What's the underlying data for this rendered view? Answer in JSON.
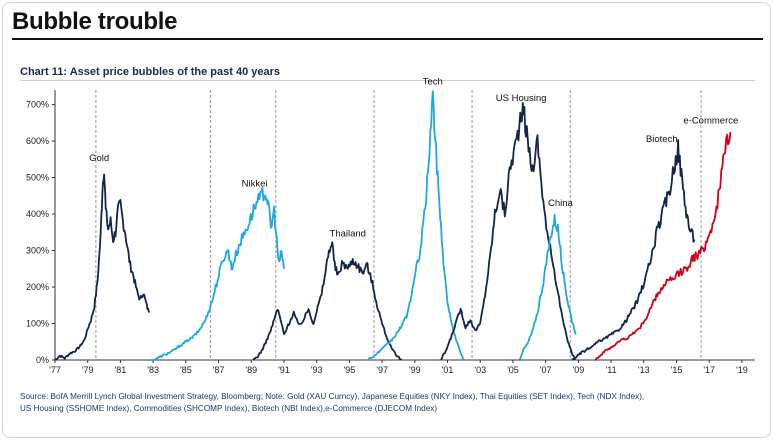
{
  "header": {
    "headline": "Bubble trouble",
    "chart_title": "Chart 11: Asset price bubbles of the past 40 years",
    "source_line1": "Source: BofA Merrill Lynch Global Investment Strategy, Bloomberg; Note: Gold (XAU Curncy), Japanese Equities (NKY Index), Thai Equities (SET Index), Tech (NDX Index),",
    "source_line2": "US Housing (SSHOME Index), Commodities (SHCOMP Index), Biotech (NBI Index),e-Commerce (DJECOM Index)"
  },
  "colors": {
    "dark_navy": "#14254a",
    "light_blue": "#1ea7e1",
    "red": "#d0021b",
    "axis": "#333333",
    "divider": "#9a9a9a"
  },
  "chart_data": {
    "type": "line",
    "title": "Chart 11: Asset price bubbles of the past 40 years",
    "xlabel": "",
    "ylabel": "",
    "xlim": [
      1977,
      2019.8
    ],
    "ylim": [
      0,
      740
    ],
    "y_ticks": [
      0,
      100,
      200,
      300,
      400,
      500,
      600,
      700
    ],
    "y_tick_labels": [
      "0%",
      "100%",
      "200%",
      "300%",
      "400%",
      "500%",
      "600%",
      "700%"
    ],
    "x_ticks": [
      1977,
      1979,
      1981,
      1983,
      1985,
      1987,
      1989,
      1991,
      1993,
      1995,
      1997,
      1999,
      2001,
      2003,
      2005,
      2007,
      2009,
      2011,
      2013,
      2015,
      2017,
      2019
    ],
    "x_tick_labels": [
      "'77",
      "'79",
      "'81",
      "'83",
      "'85",
      "'87",
      "'89",
      "'91",
      "'93",
      "'95",
      "'97",
      "'99",
      "'01",
      "'03",
      "'05",
      "'07",
      "'09",
      "'11",
      "'13",
      "'15",
      "'17",
      "'19"
    ],
    "dividers": [
      1979.5,
      1986.5,
      1990.5,
      1996.5,
      2002.5,
      2008.5,
      2016.5
    ],
    "grid": false,
    "series": [
      {
        "name": "Gold",
        "color": "#14254a",
        "label_at": [
          1979.7,
          546
        ],
        "points": [
          [
            1977,
            0
          ],
          [
            1977.3,
            12
          ],
          [
            1977.6,
            5
          ],
          [
            1977.9,
            18
          ],
          [
            1978.2,
            24
          ],
          [
            1978.5,
            36
          ],
          [
            1978.8,
            55
          ],
          [
            1979.0,
            85
          ],
          [
            1979.2,
            110
          ],
          [
            1979.4,
            145
          ],
          [
            1979.6,
            215
          ],
          [
            1979.8,
            350
          ],
          [
            1979.9,
            470
          ],
          [
            1980.0,
            530
          ],
          [
            1980.1,
            410
          ],
          [
            1980.25,
            360
          ],
          [
            1980.4,
            380
          ],
          [
            1980.55,
            330
          ],
          [
            1980.7,
            350
          ],
          [
            1980.85,
            410
          ],
          [
            1981.0,
            425
          ],
          [
            1981.15,
            380
          ],
          [
            1981.3,
            350
          ],
          [
            1981.45,
            300
          ],
          [
            1981.6,
            260
          ],
          [
            1981.8,
            230
          ],
          [
            1982.0,
            190
          ],
          [
            1982.2,
            165
          ],
          [
            1982.4,
            185
          ],
          [
            1982.6,
            150
          ],
          [
            1982.75,
            130
          ]
        ]
      },
      {
        "name": "Nikkei",
        "color": "#1ea7e1",
        "label_at": [
          1989.2,
          475
        ],
        "points": [
          [
            1983,
            0
          ],
          [
            1983.4,
            8
          ],
          [
            1983.8,
            16
          ],
          [
            1984.2,
            25
          ],
          [
            1984.6,
            38
          ],
          [
            1985.0,
            50
          ],
          [
            1985.4,
            62
          ],
          [
            1985.8,
            80
          ],
          [
            1986.2,
            110
          ],
          [
            1986.6,
            160
          ],
          [
            1987.0,
            230
          ],
          [
            1987.3,
            280
          ],
          [
            1987.6,
            300
          ],
          [
            1987.8,
            250
          ],
          [
            1988.0,
            280
          ],
          [
            1988.3,
            320
          ],
          [
            1988.6,
            350
          ],
          [
            1988.9,
            380
          ],
          [
            1989.2,
            420
          ],
          [
            1989.5,
            440
          ],
          [
            1989.8,
            462
          ],
          [
            1990.0,
            440
          ],
          [
            1990.2,
            360
          ],
          [
            1990.4,
            410
          ],
          [
            1990.55,
            330
          ],
          [
            1990.7,
            260
          ],
          [
            1990.85,
            300
          ],
          [
            1991.0,
            250
          ]
        ]
      },
      {
        "name": "Thailand",
        "color": "#14254a",
        "label_at": [
          1994.9,
          338
        ],
        "points": [
          [
            1989.1,
            0
          ],
          [
            1989.4,
            10
          ],
          [
            1989.7,
            30
          ],
          [
            1990.0,
            60
          ],
          [
            1990.3,
            95
          ],
          [
            1990.6,
            140
          ],
          [
            1990.8,
            110
          ],
          [
            1991.0,
            70
          ],
          [
            1991.3,
            100
          ],
          [
            1991.6,
            130
          ],
          [
            1991.9,
            95
          ],
          [
            1992.2,
            110
          ],
          [
            1992.5,
            140
          ],
          [
            1992.8,
            100
          ],
          [
            1993.0,
            135
          ],
          [
            1993.3,
            180
          ],
          [
            1993.6,
            260
          ],
          [
            1993.8,
            310
          ],
          [
            1993.95,
            320
          ],
          [
            1994.1,
            260
          ],
          [
            1994.3,
            230
          ],
          [
            1994.6,
            270
          ],
          [
            1994.9,
            250
          ],
          [
            1995.2,
            275
          ],
          [
            1995.5,
            260
          ],
          [
            1995.8,
            240
          ],
          [
            1996.1,
            260
          ],
          [
            1996.4,
            210
          ],
          [
            1996.7,
            150
          ],
          [
            1997.0,
            100
          ],
          [
            1997.3,
            60
          ],
          [
            1997.6,
            30
          ],
          [
            1997.9,
            10
          ],
          [
            1998.2,
            0
          ]
        ]
      },
      {
        "name": "Tech",
        "color": "#1ea7e1",
        "label_at": [
          2000.1,
          755
        ],
        "points": [
          [
            1996.1,
            0
          ],
          [
            1996.4,
            8
          ],
          [
            1996.7,
            18
          ],
          [
            1997.0,
            30
          ],
          [
            1997.3,
            42
          ],
          [
            1997.6,
            55
          ],
          [
            1997.9,
            72
          ],
          [
            1998.2,
            95
          ],
          [
            1998.5,
            120
          ],
          [
            1998.8,
            180
          ],
          [
            1999.1,
            250
          ],
          [
            1999.4,
            320
          ],
          [
            1999.7,
            450
          ],
          [
            1999.95,
            620
          ],
          [
            2000.1,
            730
          ],
          [
            2000.25,
            600
          ],
          [
            2000.4,
            500
          ],
          [
            2000.55,
            400
          ],
          [
            2000.7,
            300
          ],
          [
            2000.85,
            220
          ],
          [
            2001.0,
            160
          ],
          [
            2001.2,
            110
          ],
          [
            2001.4,
            75
          ],
          [
            2001.6,
            45
          ],
          [
            2001.8,
            20
          ],
          [
            2002.0,
            0
          ]
        ]
      },
      {
        "name": "US Housing",
        "color": "#14254a",
        "label_at": [
          2005.5,
          710
        ],
        "points": [
          [
            2000.6,
            0
          ],
          [
            2000.9,
            25
          ],
          [
            2001.2,
            60
          ],
          [
            2001.5,
            100
          ],
          [
            2001.8,
            140
          ],
          [
            2002.1,
            90
          ],
          [
            2002.4,
            110
          ],
          [
            2002.7,
            80
          ],
          [
            2003.0,
            100
          ],
          [
            2003.3,
            180
          ],
          [
            2003.6,
            280
          ],
          [
            2003.9,
            400
          ],
          [
            2004.2,
            470
          ],
          [
            2004.5,
            400
          ],
          [
            2004.8,
            520
          ],
          [
            2005.1,
            580
          ],
          [
            2005.4,
            640
          ],
          [
            2005.65,
            685
          ],
          [
            2005.9,
            600
          ],
          [
            2006.2,
            520
          ],
          [
            2006.5,
            600
          ],
          [
            2006.8,
            460
          ],
          [
            2007.1,
            340
          ],
          [
            2007.4,
            280
          ],
          [
            2007.7,
            200
          ],
          [
            2008.0,
            120
          ],
          [
            2008.3,
            60
          ],
          [
            2008.6,
            20
          ],
          [
            2008.8,
            0
          ]
        ]
      },
      {
        "name": "China",
        "color": "#1ea7e1",
        "label_at": [
          2007.9,
          422
        ],
        "points": [
          [
            2005.4,
            0
          ],
          [
            2005.6,
            25
          ],
          [
            2005.9,
            45
          ],
          [
            2006.2,
            80
          ],
          [
            2006.5,
            130
          ],
          [
            2006.8,
            200
          ],
          [
            2007.1,
            280
          ],
          [
            2007.35,
            350
          ],
          [
            2007.55,
            385
          ],
          [
            2007.75,
            360
          ],
          [
            2007.9,
            300
          ],
          [
            2008.1,
            230
          ],
          [
            2008.35,
            160
          ],
          [
            2008.6,
            110
          ],
          [
            2008.85,
            70
          ]
        ]
      },
      {
        "name": "Biotech",
        "color": "#14254a",
        "label_at": [
          2014.1,
          598
        ],
        "points": [
          [
            2008.6,
            0
          ],
          [
            2008.9,
            10
          ],
          [
            2009.2,
            20
          ],
          [
            2009.5,
            28
          ],
          [
            2009.8,
            35
          ],
          [
            2010.2,
            50
          ],
          [
            2010.6,
            58
          ],
          [
            2011.0,
            70
          ],
          [
            2011.4,
            80
          ],
          [
            2011.8,
            100
          ],
          [
            2012.2,
            130
          ],
          [
            2012.6,
            160
          ],
          [
            2013.0,
            210
          ],
          [
            2013.4,
            270
          ],
          [
            2013.8,
            350
          ],
          [
            2014.2,
            410
          ],
          [
            2014.6,
            470
          ],
          [
            2014.9,
            540
          ],
          [
            2015.1,
            580
          ],
          [
            2015.35,
            490
          ],
          [
            2015.55,
            420
          ],
          [
            2015.8,
            360
          ],
          [
            2016.1,
            330
          ]
        ]
      },
      {
        "name": "e-Commerce",
        "color": "#d0021b",
        "label_at": [
          2017.1,
          648
        ],
        "points": [
          [
            2010.0,
            0
          ],
          [
            2010.4,
            15
          ],
          [
            2010.8,
            30
          ],
          [
            2011.2,
            40
          ],
          [
            2011.6,
            55
          ],
          [
            2012.0,
            60
          ],
          [
            2012.4,
            75
          ],
          [
            2012.8,
            90
          ],
          [
            2013.2,
            120
          ],
          [
            2013.6,
            160
          ],
          [
            2014.0,
            190
          ],
          [
            2014.4,
            215
          ],
          [
            2014.8,
            220
          ],
          [
            2015.2,
            240
          ],
          [
            2015.6,
            250
          ],
          [
            2016.0,
            280
          ],
          [
            2016.4,
            290
          ],
          [
            2016.8,
            320
          ],
          [
            2017.2,
            370
          ],
          [
            2017.5,
            430
          ],
          [
            2017.8,
            520
          ],
          [
            2018.1,
            610
          ],
          [
            2018.3,
            625
          ]
        ]
      }
    ]
  }
}
